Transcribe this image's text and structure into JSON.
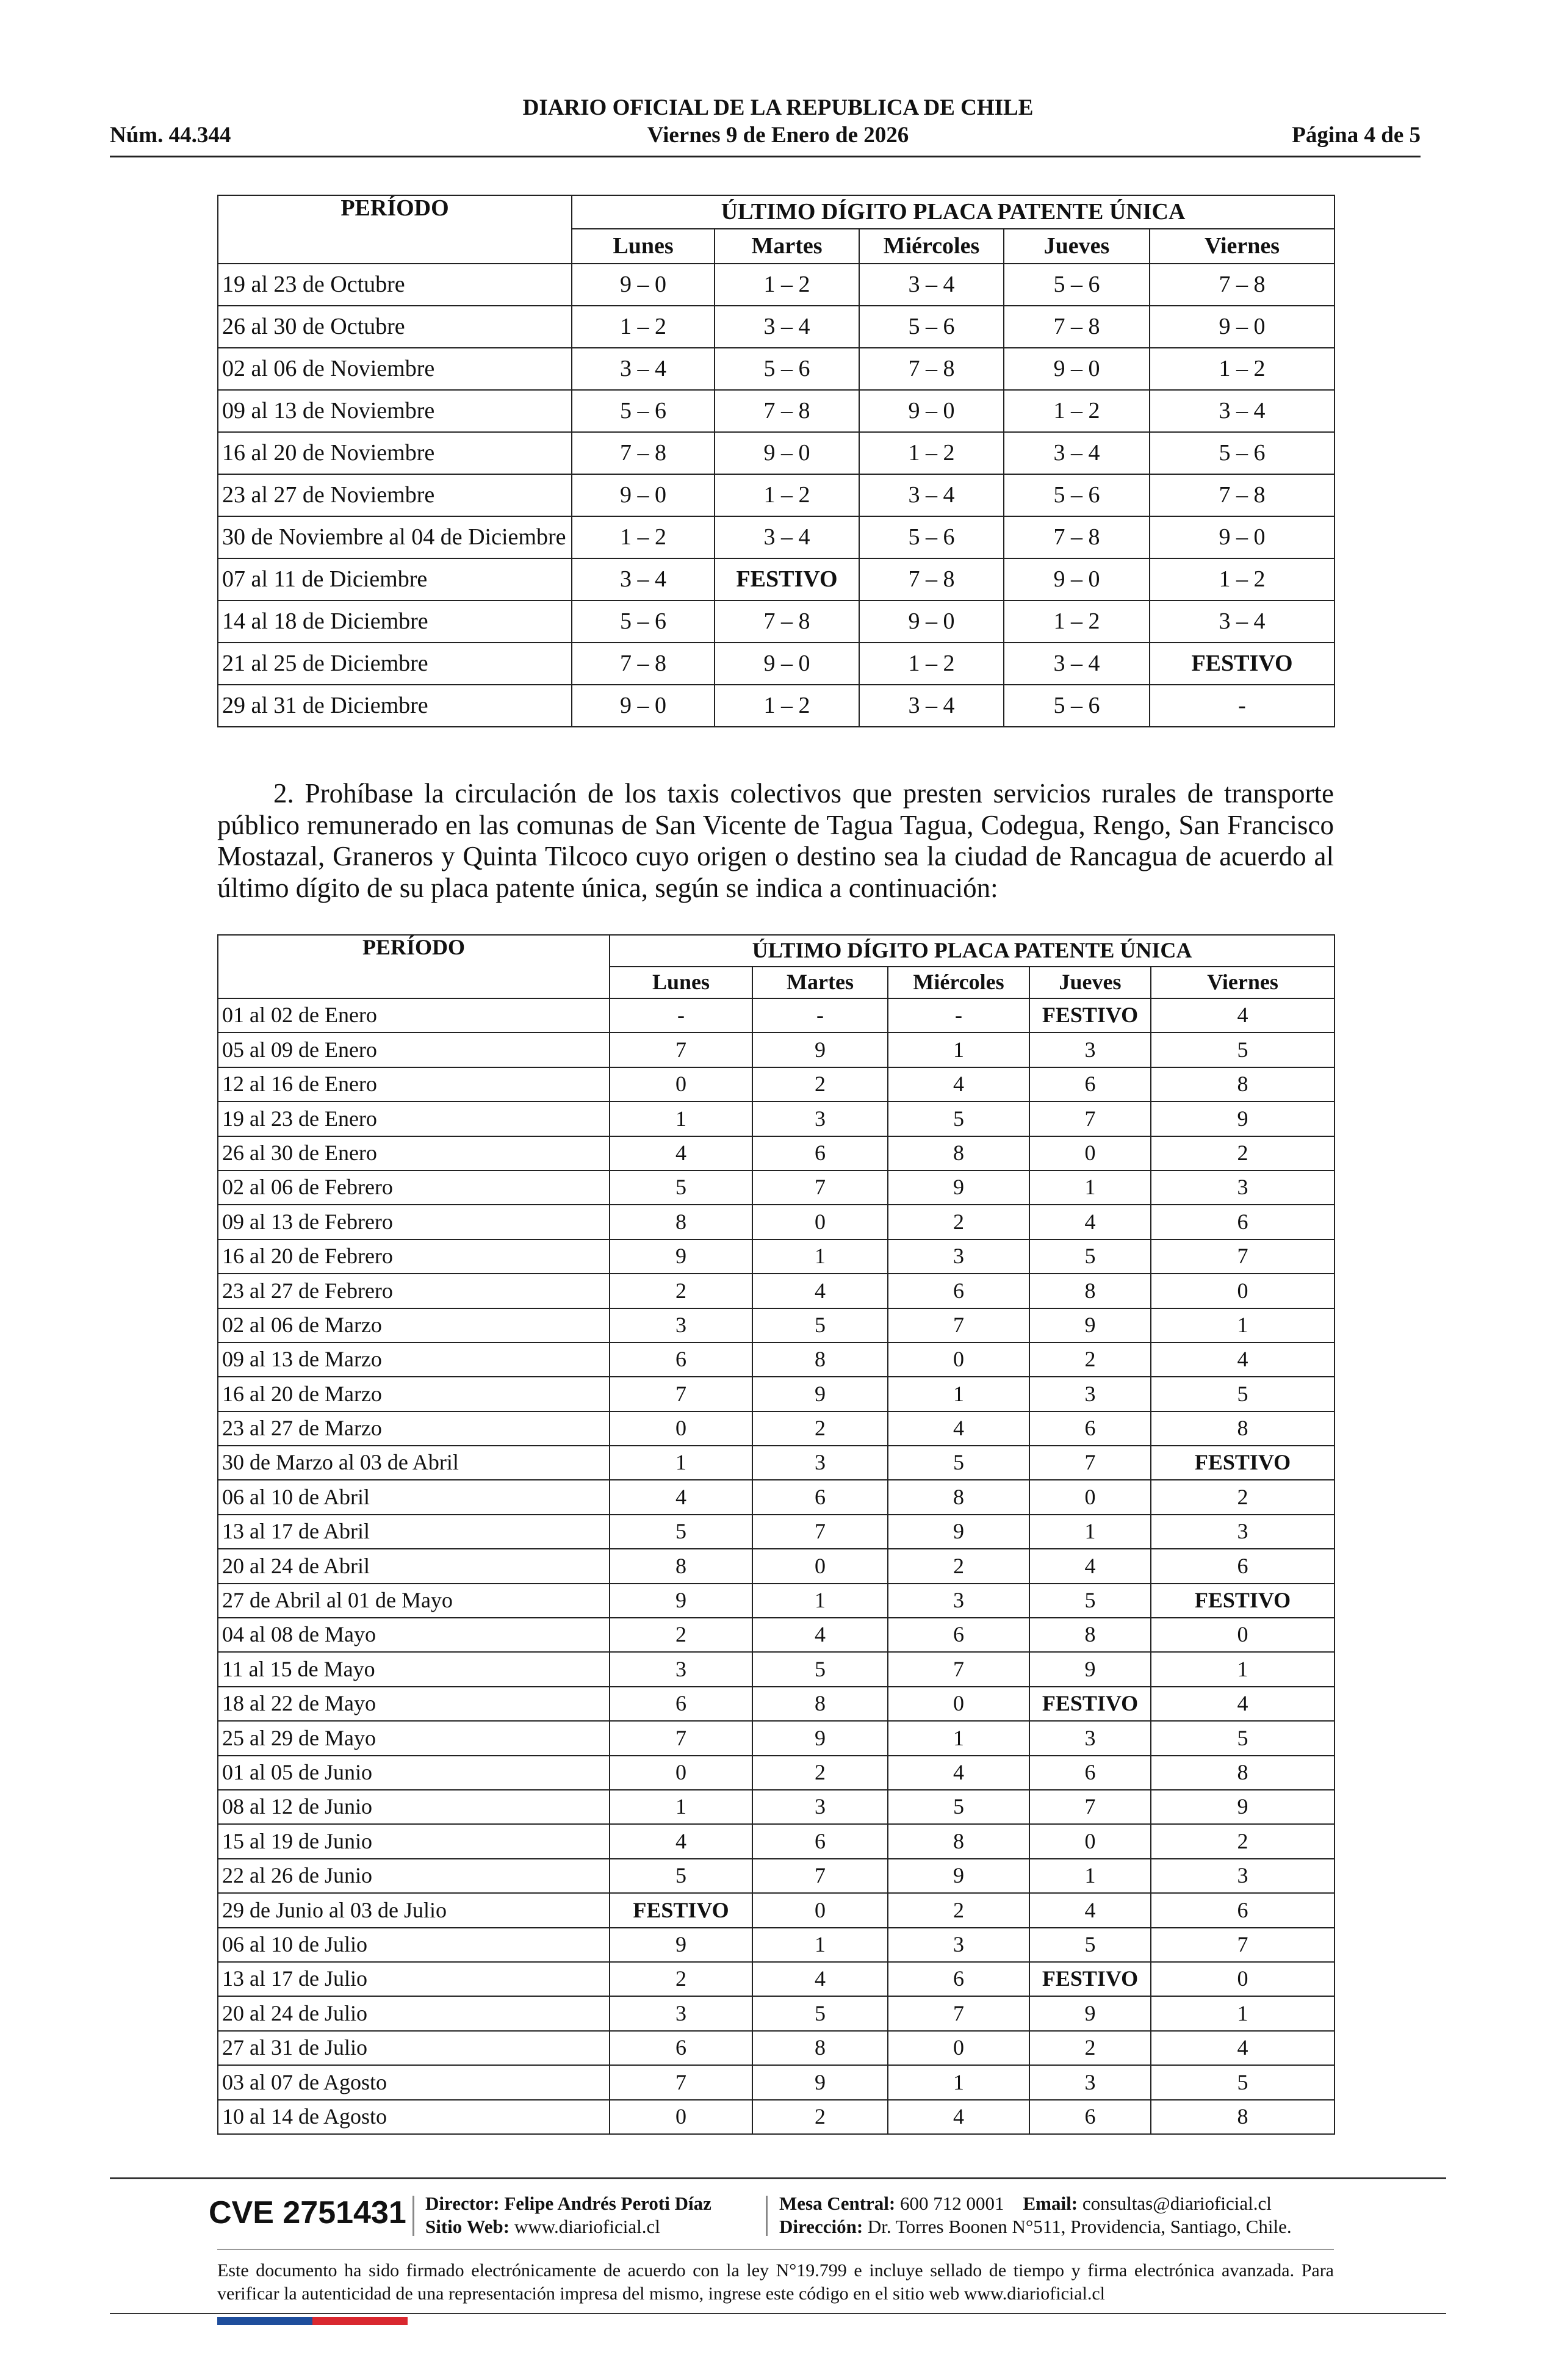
{
  "header": {
    "number": "Núm. 44.344",
    "title": "DIARIO OFICIAL DE LA REPUBLICA DE CHILE",
    "date": "Viernes 9 de Enero de 2026",
    "page": "Página 4 de 5"
  },
  "table1": {
    "period_header": "PERÍODO",
    "group_header": "ÚLTIMO DÍGITO PLACA PATENTE ÚNICA",
    "days": [
      "Lunes",
      "Martes",
      "Miércoles",
      "Jueves",
      "Viernes"
    ],
    "rows": [
      [
        "19 al 23 de Octubre",
        "9 – 0",
        "1 – 2",
        "3 – 4",
        "5 – 6",
        "7 – 8"
      ],
      [
        "26 al 30 de Octubre",
        "1 – 2",
        "3 – 4",
        "5 – 6",
        "7 – 8",
        "9 – 0"
      ],
      [
        "02 al 06 de Noviembre",
        "3 – 4",
        "5 – 6",
        "7 – 8",
        "9 – 0",
        "1 – 2"
      ],
      [
        "09 al 13 de Noviembre",
        "5 – 6",
        "7 – 8",
        "9 – 0",
        "1 – 2",
        "3 – 4"
      ],
      [
        "16 al 20 de Noviembre",
        "7 – 8",
        "9 – 0",
        "1 – 2",
        "3 – 4",
        "5 – 6"
      ],
      [
        "23 al 27 de Noviembre",
        "9 – 0",
        "1 – 2",
        "3 – 4",
        "5 – 6",
        "7 – 8"
      ],
      [
        "30 de Noviembre al 04 de Diciembre",
        "1 – 2",
        "3 – 4",
        "5 – 6",
        "7 – 8",
        "9 – 0"
      ],
      [
        "07 al 11 de Diciembre",
        "3 – 4",
        "FESTIVO",
        "7 – 8",
        "9 – 0",
        "1 – 2"
      ],
      [
        "14 al 18 de Diciembre",
        "5 – 6",
        "7 – 8",
        "9 – 0",
        "1 – 2",
        "3 – 4"
      ],
      [
        "21 al 25 de Diciembre",
        "7 – 8",
        "9 – 0",
        "1 – 2",
        "3 – 4",
        "FESTIVO"
      ],
      [
        "29 al 31 de Diciembre",
        "9 – 0",
        "1 – 2",
        "3 – 4",
        "5 – 6",
        "-"
      ]
    ]
  },
  "paragraph": "2. Prohíbase la circulación de los taxis colectivos que presten servicios rurales de transporte público remunerado en las comunas de San Vicente de Tagua Tagua, Codegua, Rengo, San Francisco Mostazal, Graneros y Quinta Tilcoco cuyo origen o destino sea la ciudad de Rancagua de acuerdo al último dígito de su placa patente única, según se indica a continuación:",
  "table2": {
    "period_header": "PERÍODO",
    "group_header": "ÚLTIMO DÍGITO PLACA PATENTE ÚNICA",
    "days": [
      "Lunes",
      "Martes",
      "Miércoles",
      "Jueves",
      "Viernes"
    ],
    "rows": [
      [
        "01 al 02 de Enero",
        "-",
        "-",
        "-",
        "FESTIVO",
        "4"
      ],
      [
        "05 al 09 de Enero",
        "7",
        "9",
        "1",
        "3",
        "5"
      ],
      [
        "12 al 16 de Enero",
        "0",
        "2",
        "4",
        "6",
        "8"
      ],
      [
        "19 al 23 de Enero",
        "1",
        "3",
        "5",
        "7",
        "9"
      ],
      [
        "26 al 30 de Enero",
        "4",
        "6",
        "8",
        "0",
        "2"
      ],
      [
        "02 al 06 de Febrero",
        "5",
        "7",
        "9",
        "1",
        "3"
      ],
      [
        "09 al 13 de Febrero",
        "8",
        "0",
        "2",
        "4",
        "6"
      ],
      [
        "16 al 20 de Febrero",
        "9",
        "1",
        "3",
        "5",
        "7"
      ],
      [
        "23 al 27 de Febrero",
        "2",
        "4",
        "6",
        "8",
        "0"
      ],
      [
        "02 al 06 de Marzo",
        "3",
        "5",
        "7",
        "9",
        "1"
      ],
      [
        "09 al 13 de Marzo",
        "6",
        "8",
        "0",
        "2",
        "4"
      ],
      [
        "16 al 20 de Marzo",
        "7",
        "9",
        "1",
        "3",
        "5"
      ],
      [
        "23 al 27 de Marzo",
        "0",
        "2",
        "4",
        "6",
        "8"
      ],
      [
        "30 de Marzo al 03 de Abril",
        "1",
        "3",
        "5",
        "7",
        "FESTIVO"
      ],
      [
        "06 al 10 de Abril",
        "4",
        "6",
        "8",
        "0",
        "2"
      ],
      [
        "13 al 17 de Abril",
        "5",
        "7",
        "9",
        "1",
        "3"
      ],
      [
        "20 al 24 de Abril",
        "8",
        "0",
        "2",
        "4",
        "6"
      ],
      [
        "27 de Abril al 01 de Mayo",
        "9",
        "1",
        "3",
        "5",
        "FESTIVO"
      ],
      [
        "04 al 08 de Mayo",
        "2",
        "4",
        "6",
        "8",
        "0"
      ],
      [
        "11 al 15 de Mayo",
        "3",
        "5",
        "7",
        "9",
        "1"
      ],
      [
        "18 al 22 de Mayo",
        "6",
        "8",
        "0",
        "FESTIVO",
        "4"
      ],
      [
        "25 al 29 de Mayo",
        "7",
        "9",
        "1",
        "3",
        "5"
      ],
      [
        "01 al 05 de Junio",
        "0",
        "2",
        "4",
        "6",
        "8"
      ],
      [
        "08 al 12 de Junio",
        "1",
        "3",
        "5",
        "7",
        "9"
      ],
      [
        "15 al 19 de Junio",
        "4",
        "6",
        "8",
        "0",
        "2"
      ],
      [
        "22 al 26 de Junio",
        "5",
        "7",
        "9",
        "1",
        "3"
      ],
      [
        "29 de Junio al 03 de Julio",
        "FESTIVO",
        "0",
        "2",
        "4",
        "6"
      ],
      [
        "06 al 10 de Julio",
        "9",
        "1",
        "3",
        "5",
        "7"
      ],
      [
        "13 al 17 de Julio",
        "2",
        "4",
        "6",
        "FESTIVO",
        "0"
      ],
      [
        "20 al 24 de Julio",
        "3",
        "5",
        "7",
        "9",
        "1"
      ],
      [
        "27 al 31 de Julio",
        "6",
        "8",
        "0",
        "2",
        "4"
      ],
      [
        "03 al 07 de Agosto",
        "7",
        "9",
        "1",
        "3",
        "5"
      ],
      [
        "10 al 14 de Agosto",
        "0",
        "2",
        "4",
        "6",
        "8"
      ]
    ]
  },
  "footer": {
    "cve": "CVE 2751431",
    "director_label": "Director:",
    "director": "Felipe Andrés Peroti Díaz",
    "web_label": "Sitio Web:",
    "web": "www.diarioficial.cl",
    "phone_label": "Mesa Central:",
    "phone": "600 712 0001",
    "email_label": "Email:",
    "email": "consultas@diarioficial.cl",
    "address_label": "Dirección:",
    "address": "Dr. Torres Boonen N°511, Providencia, Santiago, Chile.",
    "disclaimer": "Este documento ha sido firmado electrónicamente de acuerdo con la ley N°19.799 e incluye sellado de tiempo y firma electrónica avanzada. Para verificar la autenticidad de una representación impresa del mismo, ingrese este código en el sitio web www.diarioficial.cl"
  }
}
